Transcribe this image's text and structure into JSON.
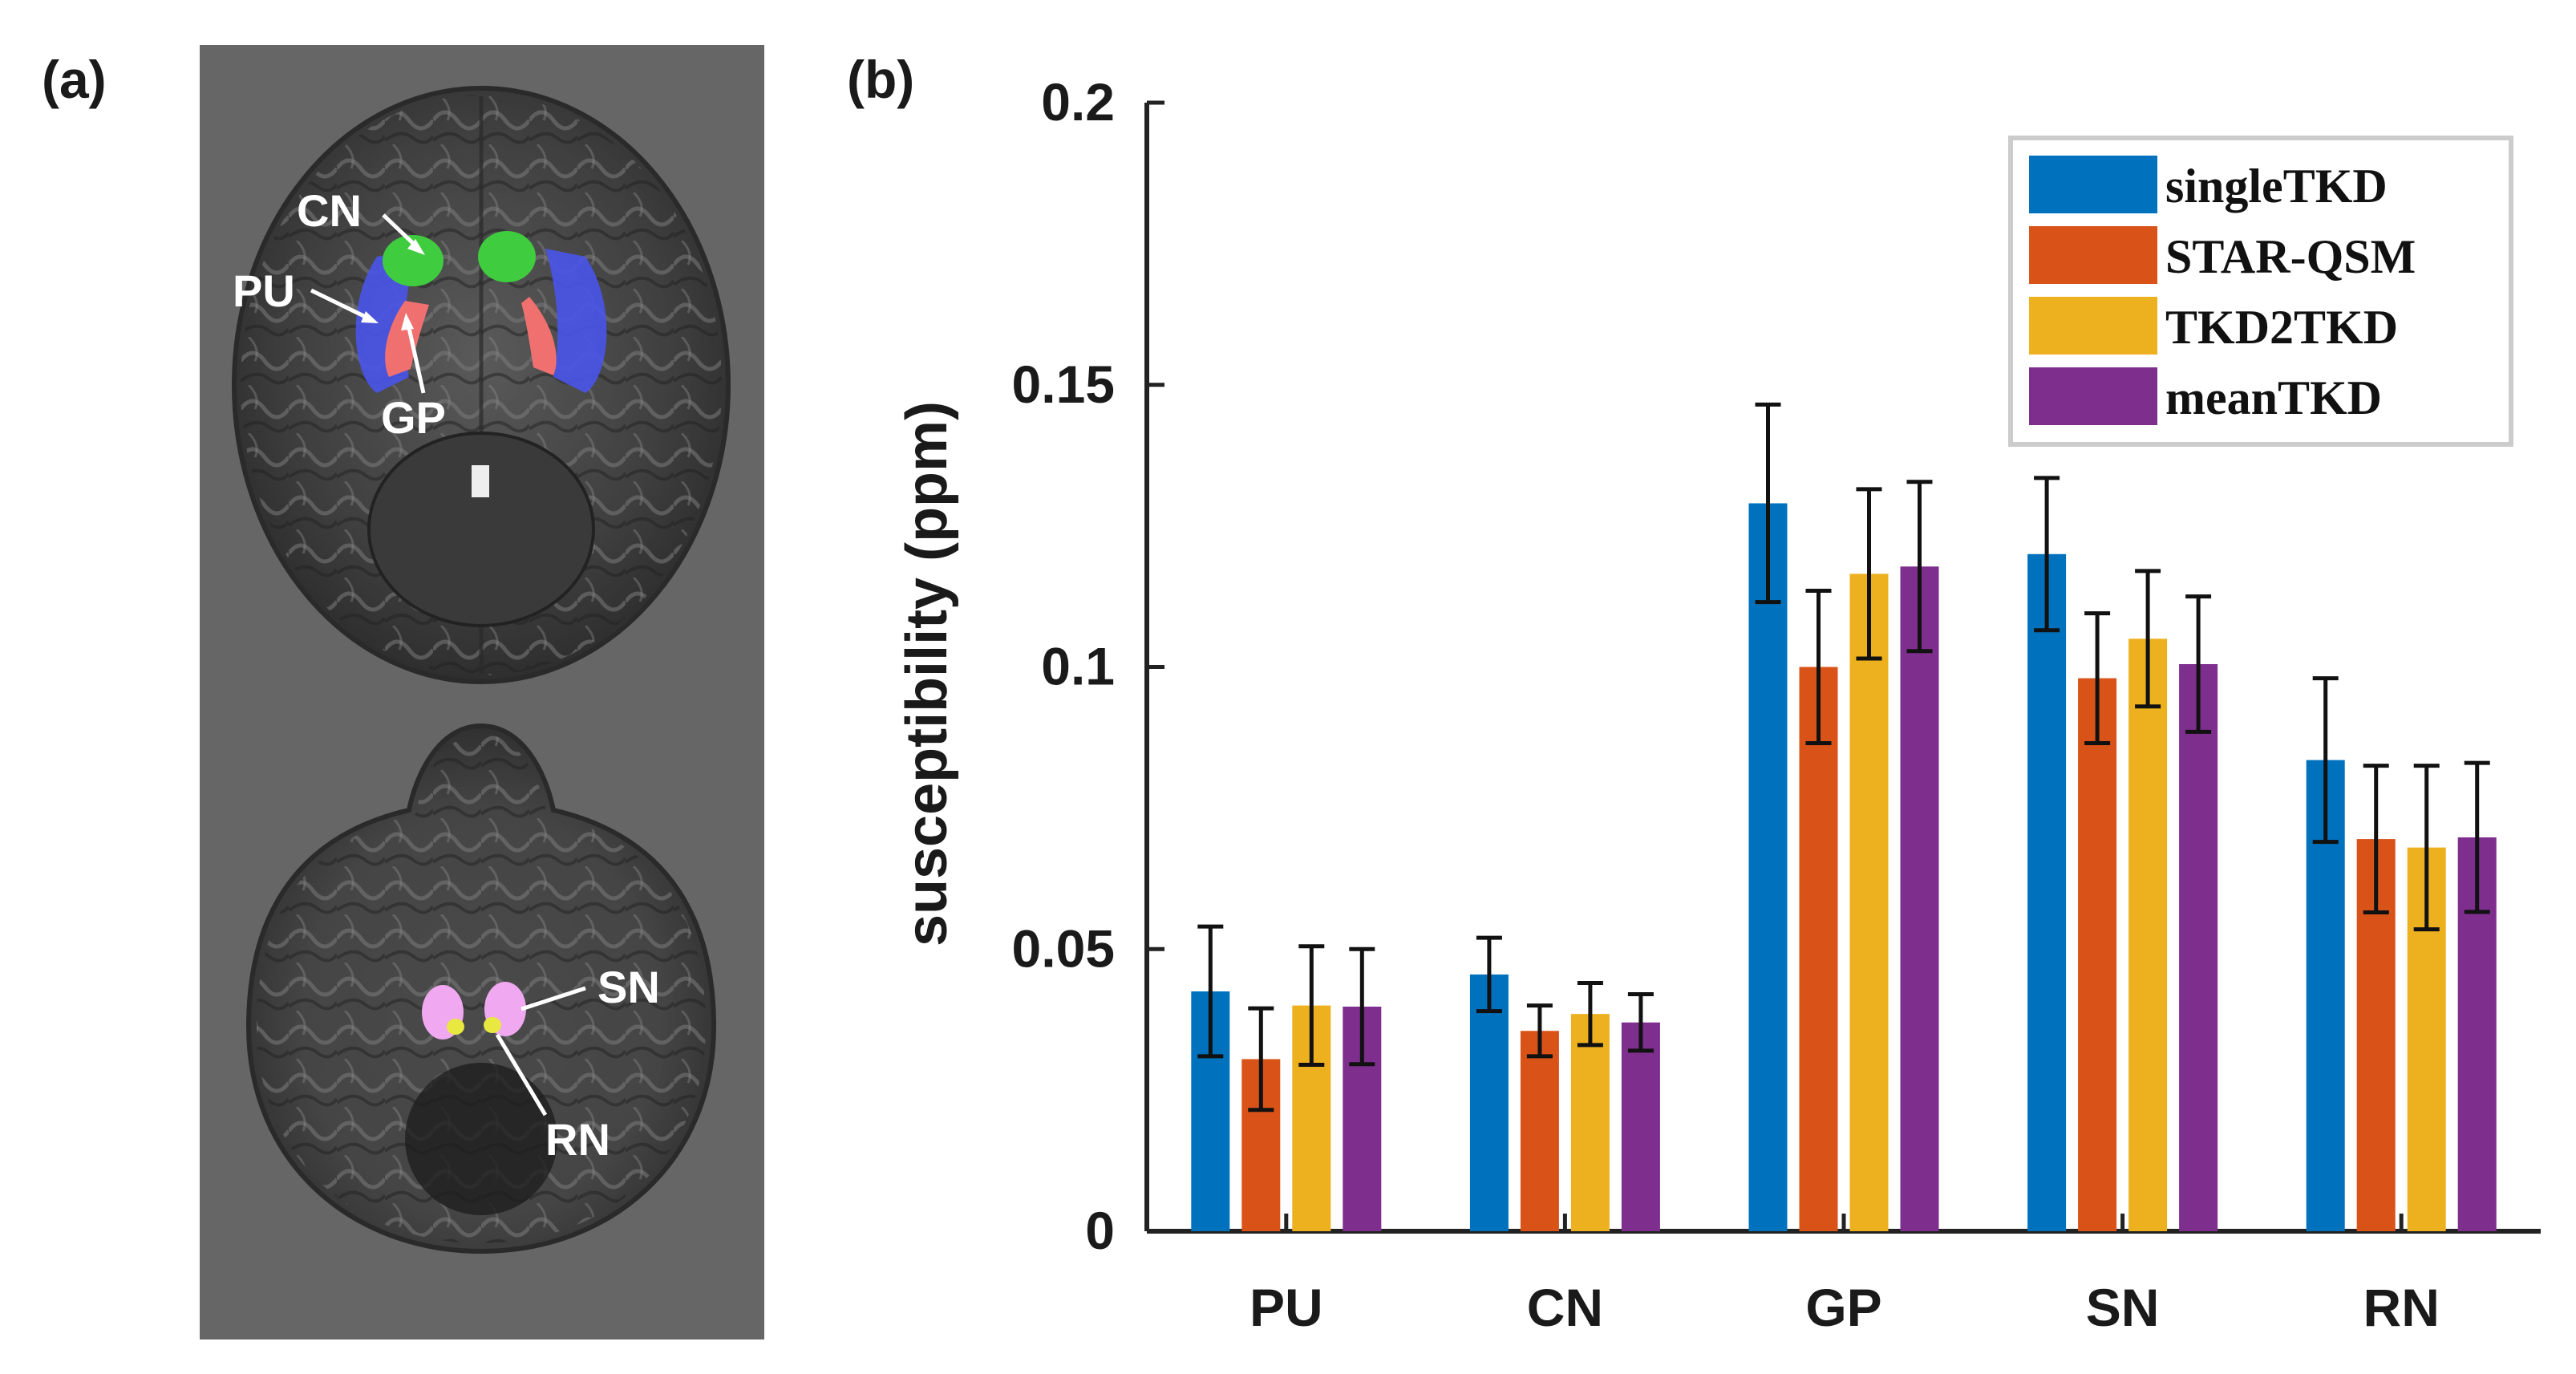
{
  "panel_a": {
    "label": "(a)",
    "regions": {
      "cn": "CN",
      "pu": "PU",
      "gp": "GP",
      "sn": "SN",
      "rn": "RN"
    },
    "colors": {
      "background": "#666666",
      "pu": "#4a55e6",
      "cn": "#3fcc3f",
      "gp": "#f07070",
      "sn": "#f0a8f0",
      "rn": "#e8e840"
    }
  },
  "chart_data": {
    "panel_label": "(b)",
    "type": "bar",
    "categories": [
      "PU",
      "CN",
      "GP",
      "SN",
      "RN"
    ],
    "ylabel": "susceptibility (ppm)",
    "xlabel": "",
    "ylim": [
      0,
      0.2
    ],
    "yticks": [
      0,
      0.05,
      0.1,
      0.15,
      0.2
    ],
    "ytick_labels": [
      "0",
      "0.05",
      "0.1",
      "0.15",
      "0.2"
    ],
    "legend_position": "top-right",
    "series": [
      {
        "name": "singleTKD",
        "color": "#0072bd",
        "values": [
          0.0425,
          0.0455,
          0.129,
          0.12,
          0.0835
        ],
        "errors": [
          0.0115,
          0.0065,
          0.0175,
          0.0135,
          0.0145
        ]
      },
      {
        "name": "STAR-QSM",
        "color": "#d95319",
        "values": [
          0.0305,
          0.0355,
          0.1,
          0.098,
          0.0695
        ],
        "errors": [
          0.009,
          0.0045,
          0.0135,
          0.0115,
          0.013
        ]
      },
      {
        "name": "TKD2TKD",
        "color": "#edb120",
        "values": [
          0.04,
          0.0385,
          0.1165,
          0.105,
          0.068
        ],
        "errors": [
          0.0105,
          0.0055,
          0.015,
          0.012,
          0.0145
        ]
      },
      {
        "name": "meanTKD",
        "color": "#7e2f8e",
        "values": [
          0.0398,
          0.037,
          0.1178,
          0.1005,
          0.0698
        ],
        "errors": [
          0.0102,
          0.005,
          0.015,
          0.012,
          0.0132
        ]
      }
    ]
  }
}
